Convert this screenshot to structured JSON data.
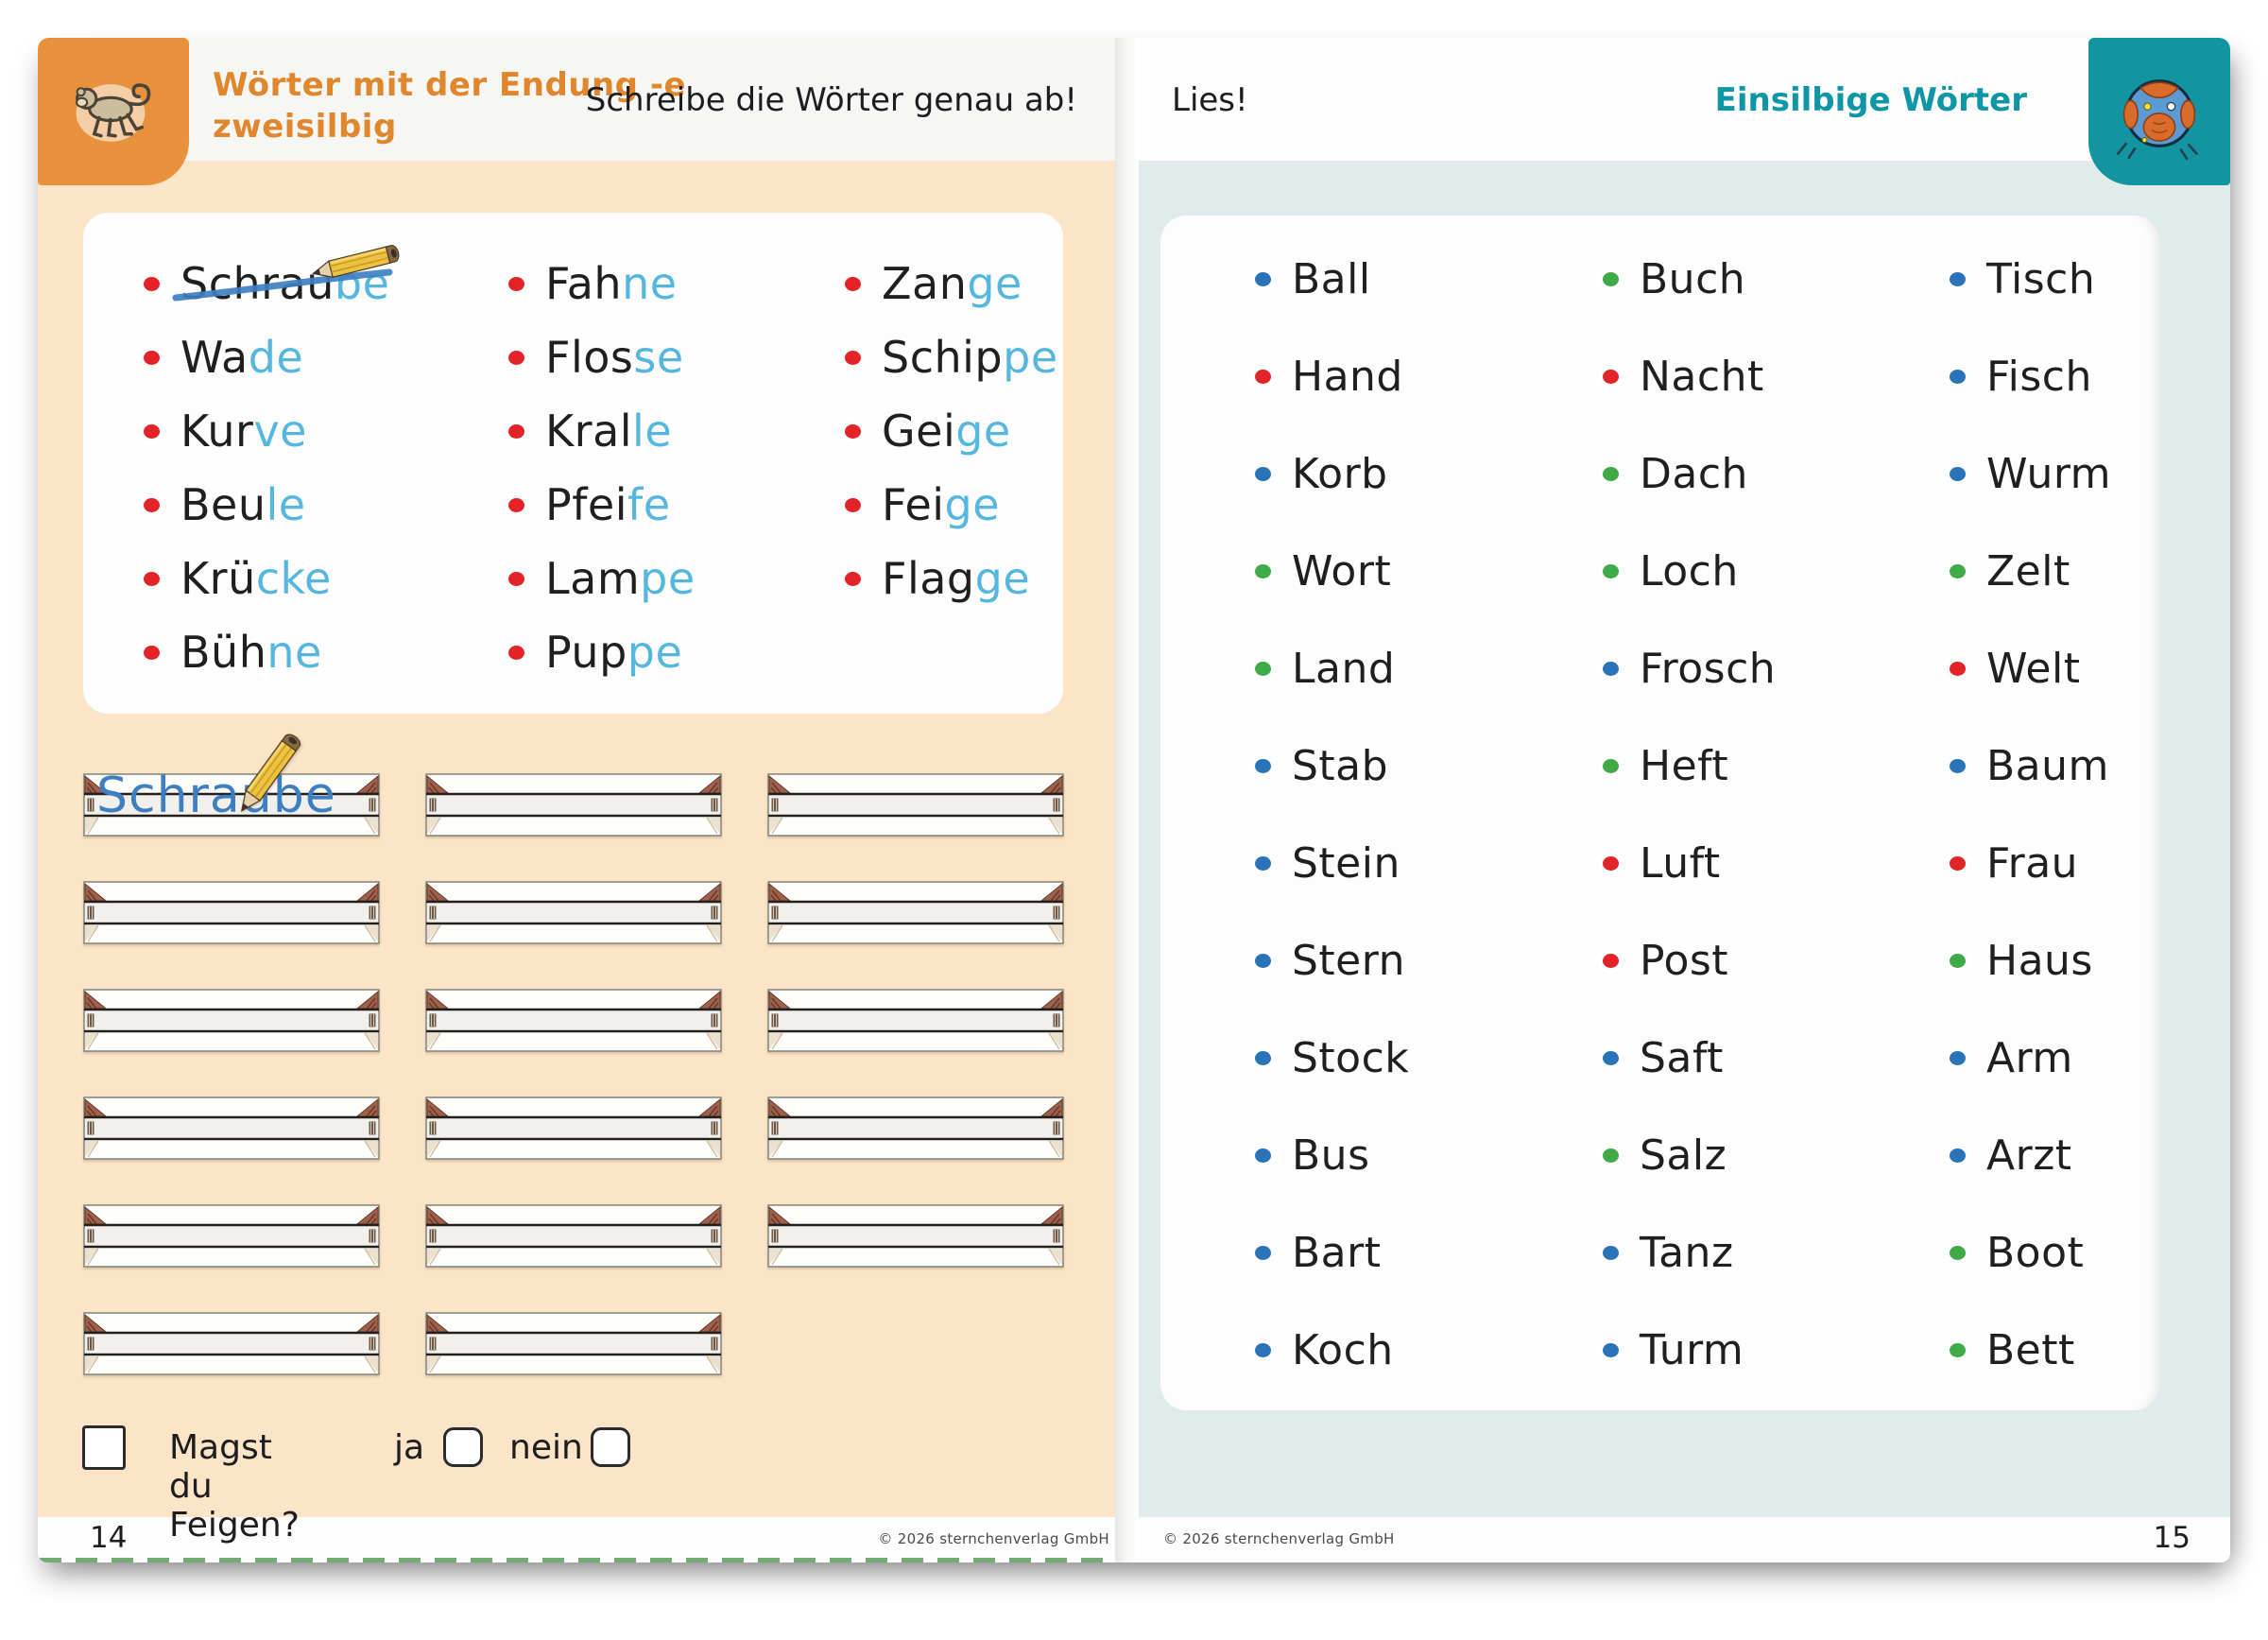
{
  "left_page": {
    "tab_icon": "monkey",
    "title_line1": "Wörter mit der Endung -e",
    "title_line2": "zweisilbig",
    "instruction": "Schreibe die Wörter genau ab!",
    "word_columns": [
      [
        {
          "pre": "Schrau",
          "end": "be",
          "crossed": true
        },
        {
          "pre": "Wa",
          "end": "de"
        },
        {
          "pre": "Kur",
          "end": "ve"
        },
        {
          "pre": "Beu",
          "end": "le"
        },
        {
          "pre": "Krü",
          "end": "cke"
        },
        {
          "pre": "Büh",
          "end": "ne"
        }
      ],
      [
        {
          "pre": "Fah",
          "end": "ne"
        },
        {
          "pre": "Flos",
          "end": "se"
        },
        {
          "pre": "Kral",
          "end": "le"
        },
        {
          "pre": "Pfei",
          "end": "fe"
        },
        {
          "pre": "Lam",
          "end": "pe"
        },
        {
          "pre": "Pup",
          "end": "pe"
        }
      ],
      [
        {
          "pre": "Zan",
          "end": "ge"
        },
        {
          "pre": "Schip",
          "end": "pe"
        },
        {
          "pre": "Gei",
          "end": "ge"
        },
        {
          "pre": "Fei",
          "end": "ge"
        },
        {
          "pre": "Flag",
          "end": "ge"
        }
      ]
    ],
    "written_word": "Schraube",
    "question": "Magst du Feigen?",
    "yes_label": "ja",
    "no_label": "nein",
    "page_number": "14",
    "copyright": "© 2026 sternchenverlag GmbH"
  },
  "right_page": {
    "tab_icon": "ball",
    "instruction": "Lies!",
    "title": "Einsilbige Wörter",
    "word_columns": [
      [
        {
          "word": "Ball",
          "dot": "blue"
        },
        {
          "word": "Hand",
          "dot": "red"
        },
        {
          "word": "Korb",
          "dot": "blue"
        },
        {
          "word": "Wort",
          "dot": "green"
        },
        {
          "word": "Land",
          "dot": "green"
        },
        {
          "word": "Stab",
          "dot": "blue"
        },
        {
          "word": "Stein",
          "dot": "blue"
        },
        {
          "word": "Stern",
          "dot": "blue"
        },
        {
          "word": "Stock",
          "dot": "blue"
        },
        {
          "word": "Bus",
          "dot": "blue"
        },
        {
          "word": "Bart",
          "dot": "blue"
        },
        {
          "word": "Koch",
          "dot": "blue"
        }
      ],
      [
        {
          "word": "Buch",
          "dot": "green"
        },
        {
          "word": "Nacht",
          "dot": "red"
        },
        {
          "word": "Dach",
          "dot": "green"
        },
        {
          "word": "Loch",
          "dot": "green"
        },
        {
          "word": "Frosch",
          "dot": "blue"
        },
        {
          "word": "Heft",
          "dot": "green"
        },
        {
          "word": "Luft",
          "dot": "red"
        },
        {
          "word": "Post",
          "dot": "red"
        },
        {
          "word": "Saft",
          "dot": "blue"
        },
        {
          "word": "Salz",
          "dot": "green"
        },
        {
          "word": "Tanz",
          "dot": "blue"
        },
        {
          "word": "Turm",
          "dot": "blue"
        }
      ],
      [
        {
          "word": "Tisch",
          "dot": "blue"
        },
        {
          "word": "Fisch",
          "dot": "blue"
        },
        {
          "word": "Wurm",
          "dot": "blue"
        },
        {
          "word": "Zelt",
          "dot": "green"
        },
        {
          "word": "Welt",
          "dot": "red"
        },
        {
          "word": "Baum",
          "dot": "blue"
        },
        {
          "word": "Frau",
          "dot": "red"
        },
        {
          "word": "Haus",
          "dot": "green"
        },
        {
          "word": "Arm",
          "dot": "blue"
        },
        {
          "word": "Arzt",
          "dot": "blue"
        },
        {
          "word": "Boot",
          "dot": "green"
        },
        {
          "word": "Bett",
          "dot": "green"
        }
      ]
    ],
    "page_number": "15",
    "copyright": "© 2026 sternchenverlag GmbH"
  },
  "icons": {
    "left_tab": "monkey",
    "right_tab": "ball",
    "overlay": "pencil"
  },
  "colors": {
    "orange_tab": "#e8923d",
    "orange_text": "#e0862c",
    "teal_tab": "#1294a1",
    "teal_text": "#0f96a6",
    "dot_red": "#e32328",
    "dot_blue": "#2a73b8",
    "dot_green": "#3faa47",
    "syllable_blue": "#55b7de",
    "handwriting_blue": "#3d7fc1",
    "left_bg": "#fbe4c7",
    "right_bg": "#e1ebeb",
    "dash_green": "#74ab74"
  }
}
